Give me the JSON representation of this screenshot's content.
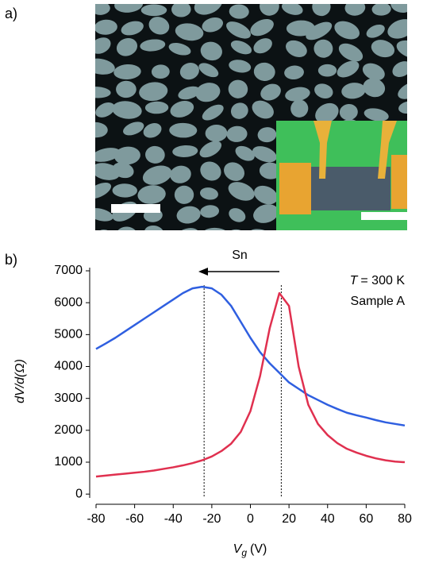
{
  "panel_labels": [
    "a)",
    "b)"
  ],
  "chart_data": {
    "type": "line",
    "ylabel": "dV/d(Ω)",
    "xlabel": {
      "symbol": "V",
      "subscript": "g",
      "unit": "(V)"
    },
    "annotations": {
      "arrow_label": "Sn",
      "temperature": {
        "symbol": "T",
        "text": "= 300 K"
      },
      "sample": "Sample A"
    },
    "vlines": [
      -24,
      16
    ],
    "x": [
      -80,
      -75,
      -70,
      -65,
      -60,
      -55,
      -50,
      -45,
      -40,
      -35,
      -30,
      -25,
      -20,
      -15,
      -10,
      -5,
      0,
      5,
      10,
      15,
      20,
      25,
      30,
      35,
      40,
      45,
      50,
      55,
      60,
      65,
      70,
      75,
      80
    ],
    "series": [
      {
        "color": "#2f5fe0",
        "values": [
          4550,
          4720,
          4900,
          5100,
          5300,
          5500,
          5700,
          5900,
          6100,
          6300,
          6450,
          6500,
          6450,
          6250,
          5900,
          5400,
          4900,
          4450,
          4100,
          3800,
          3500,
          3300,
          3100,
          2950,
          2800,
          2670,
          2550,
          2470,
          2400,
          2320,
          2250,
          2200,
          2150
        ]
      },
      {
        "color": "#e0304f",
        "values": [
          550,
          580,
          610,
          640,
          670,
          700,
          740,
          790,
          840,
          900,
          970,
          1060,
          1180,
          1350,
          1580,
          1950,
          2600,
          3700,
          5200,
          6300,
          5900,
          4000,
          2800,
          2200,
          1850,
          1600,
          1420,
          1300,
          1200,
          1120,
          1060,
          1020,
          1000
        ]
      }
    ],
    "xlim": [
      -80,
      80
    ],
    "xticks": [
      -80,
      -60,
      -40,
      -20,
      0,
      20,
      40,
      60,
      80
    ],
    "ylim": [
      -120,
      7100
    ],
    "yticks": [
      0,
      1000,
      2000,
      3000,
      4000,
      5000,
      6000,
      7000
    ]
  }
}
